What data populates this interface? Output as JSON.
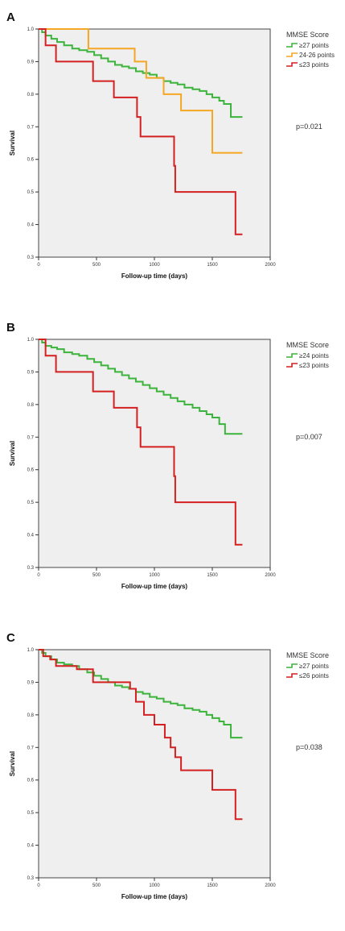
{
  "panels": [
    {
      "label": "A",
      "legend_title": "MMSE Score",
      "p_value": "p=0.021",
      "xlabel": "Follow-up time (days)",
      "ylabel": "Survival"
    },
    {
      "label": "B",
      "legend_title": "MMSE Score",
      "p_value": "p=0.007",
      "xlabel": "Follow-up time (days)",
      "ylabel": "Survival"
    },
    {
      "label": "C",
      "legend_title": "MMSE Score",
      "p_value": "p=0.038",
      "xlabel": "Follow-up time (days)",
      "ylabel": "Survival"
    }
  ],
  "chart_data": [
    {
      "type": "line",
      "title": "A",
      "xlabel": "Follow-up time (days)",
      "ylabel": "Survival",
      "xlim": [
        0,
        2000
      ],
      "ylim": [
        0.3,
        1.0
      ],
      "xticks": [
        0,
        500,
        1000,
        1500,
        2000
      ],
      "yticks": [
        0.3,
        0.4,
        0.5,
        0.6,
        0.7,
        0.8,
        0.9,
        1.0
      ],
      "legend_position": "right",
      "series": [
        {
          "name": "≥27 points",
          "color": "#3cb43c",
          "x": [
            0,
            30,
            60,
            110,
            160,
            220,
            290,
            350,
            420,
            480,
            540,
            600,
            660,
            720,
            780,
            840,
            900,
            960,
            1020,
            1080,
            1140,
            1200,
            1260,
            1330,
            1390,
            1450,
            1500,
            1560,
            1600,
            1660,
            1760
          ],
          "y": [
            1.0,
            0.99,
            0.98,
            0.97,
            0.96,
            0.95,
            0.94,
            0.935,
            0.93,
            0.92,
            0.91,
            0.9,
            0.89,
            0.885,
            0.88,
            0.87,
            0.865,
            0.86,
            0.85,
            0.84,
            0.835,
            0.83,
            0.82,
            0.815,
            0.81,
            0.8,
            0.79,
            0.78,
            0.77,
            0.73,
            0.73
          ]
        },
        {
          "name": "24-26 points",
          "color": "#f5a623",
          "x": [
            0,
            430,
            830,
            930,
            1080,
            1230,
            1500,
            1760
          ],
          "y": [
            1.0,
            0.94,
            0.9,
            0.85,
            0.8,
            0.75,
            0.62,
            0.62
          ]
        },
        {
          "name": "≤23 points",
          "color": "#d42020",
          "x": [
            0,
            60,
            150,
            470,
            650,
            850,
            880,
            1170,
            1180,
            1700,
            1760
          ],
          "y": [
            1.0,
            0.95,
            0.9,
            0.84,
            0.79,
            0.73,
            0.67,
            0.58,
            0.5,
            0.37,
            0.37
          ]
        }
      ]
    },
    {
      "type": "line",
      "title": "B",
      "xlabel": "Follow-up time (days)",
      "ylabel": "Survival",
      "xlim": [
        0,
        2000
      ],
      "ylim": [
        0.3,
        1.0
      ],
      "xticks": [
        0,
        500,
        1000,
        1500,
        2000
      ],
      "yticks": [
        0.3,
        0.4,
        0.5,
        0.6,
        0.7,
        0.8,
        0.9,
        1.0
      ],
      "legend_position": "right",
      "series": [
        {
          "name": "≥24 points",
          "color": "#3cb43c",
          "x": [
            0,
            30,
            60,
            110,
            160,
            220,
            290,
            350,
            420,
            480,
            540,
            600,
            660,
            720,
            780,
            840,
            900,
            960,
            1020,
            1080,
            1140,
            1200,
            1260,
            1330,
            1390,
            1450,
            1500,
            1560,
            1610,
            1760
          ],
          "y": [
            1.0,
            0.99,
            0.98,
            0.975,
            0.97,
            0.96,
            0.955,
            0.95,
            0.94,
            0.93,
            0.92,
            0.91,
            0.9,
            0.89,
            0.88,
            0.87,
            0.86,
            0.85,
            0.84,
            0.83,
            0.82,
            0.81,
            0.8,
            0.79,
            0.78,
            0.77,
            0.76,
            0.74,
            0.71,
            0.71
          ]
        },
        {
          "name": "≤23 points",
          "color": "#d42020",
          "x": [
            0,
            60,
            150,
            470,
            650,
            850,
            880,
            1170,
            1180,
            1700,
            1760
          ],
          "y": [
            1.0,
            0.95,
            0.9,
            0.84,
            0.79,
            0.73,
            0.67,
            0.58,
            0.5,
            0.37,
            0.37
          ]
        }
      ]
    },
    {
      "type": "line",
      "title": "C",
      "xlabel": "Follow-up time (days)",
      "ylabel": "Survival",
      "xlim": [
        0,
        2000
      ],
      "ylim": [
        0.3,
        1.0
      ],
      "xticks": [
        0,
        500,
        1000,
        1500,
        2000
      ],
      "yticks": [
        0.3,
        0.4,
        0.5,
        0.6,
        0.7,
        0.8,
        0.9,
        1.0
      ],
      "legend_position": "right",
      "series": [
        {
          "name": "≥27 points",
          "color": "#3cb43c",
          "x": [
            0,
            30,
            60,
            110,
            160,
            220,
            290,
            350,
            420,
            480,
            540,
            600,
            660,
            720,
            780,
            840,
            900,
            960,
            1020,
            1080,
            1140,
            1200,
            1260,
            1330,
            1390,
            1450,
            1500,
            1560,
            1600,
            1660,
            1760
          ],
          "y": [
            1.0,
            0.99,
            0.98,
            0.97,
            0.96,
            0.955,
            0.95,
            0.94,
            0.93,
            0.92,
            0.91,
            0.9,
            0.89,
            0.885,
            0.88,
            0.87,
            0.865,
            0.855,
            0.85,
            0.84,
            0.835,
            0.83,
            0.82,
            0.815,
            0.81,
            0.8,
            0.79,
            0.78,
            0.77,
            0.73,
            0.73
          ]
        },
        {
          "name": "≤26 points",
          "color": "#d42020",
          "x": [
            0,
            40,
            100,
            150,
            330,
            470,
            790,
            840,
            910,
            1000,
            1090,
            1140,
            1180,
            1230,
            1500,
            1700,
            1760
          ],
          "y": [
            1.0,
            0.98,
            0.97,
            0.95,
            0.94,
            0.9,
            0.88,
            0.84,
            0.8,
            0.77,
            0.73,
            0.7,
            0.67,
            0.63,
            0.57,
            0.48,
            0.48
          ]
        }
      ]
    }
  ]
}
